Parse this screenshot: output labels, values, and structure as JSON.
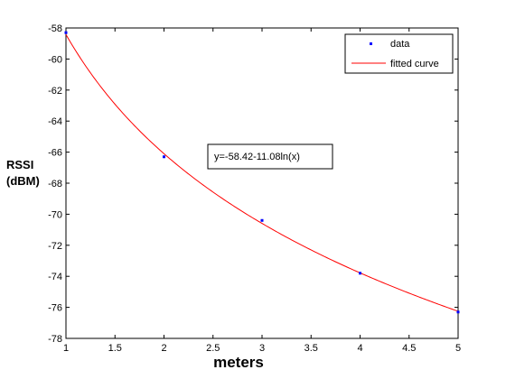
{
  "chart_data": {
    "type": "line",
    "x_ticks": [
      "1",
      "1.5",
      "2",
      "2.5",
      "3",
      "3.5",
      "4",
      "4.5",
      "5"
    ],
    "y_ticks": [
      "-58",
      "-60",
      "-62",
      "-64",
      "-66",
      "-68",
      "-70",
      "-72",
      "-74",
      "-76",
      "-78"
    ],
    "xlim": [
      1,
      5
    ],
    "ylim": [
      -78,
      -58
    ],
    "xlabel": "meters",
    "ylabel": [
      "RSSI",
      "(dBM)"
    ],
    "grid": false,
    "legend_position": "top-right",
    "series": [
      {
        "name": "data",
        "style": "markers",
        "color": "#0000ff",
        "x": [
          1,
          2,
          3,
          4,
          5
        ],
        "y": [
          -58.3,
          -66.3,
          -70.4,
          -73.8,
          -76.3
        ]
      },
      {
        "name": "fitted curve",
        "style": "line",
        "color": "#ff0000",
        "equation": {
          "a": -58.42,
          "b": -11.08,
          "form": "a + b*ln(x)"
        }
      }
    ],
    "annotation": "y=-58.42-11.08ln(x)"
  }
}
